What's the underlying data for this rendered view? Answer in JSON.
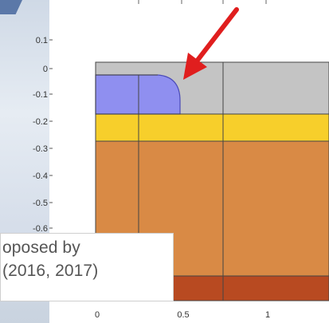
{
  "figure": {
    "y_ticks": [
      "0.1",
      "0",
      "-0.1",
      "-0.2",
      "-0.3",
      "-0.4",
      "-0.5",
      "-0.6"
    ],
    "x_ticks": [
      "0",
      "0.5",
      "1"
    ],
    "layers": [
      {
        "name": "top-gray-layer",
        "color": "#c4c4c4"
      },
      {
        "name": "yellow-layer",
        "color": "#f7cf2b"
      },
      {
        "name": "orange-layer",
        "color": "#d98a45"
      },
      {
        "name": "bottom-rust-layer",
        "color": "#b84a21"
      }
    ],
    "inclusion_color": "#8f8ff0",
    "arrow_color": "#e01e1e"
  },
  "callout": {
    "line1": "oposed by",
    "line2": "(2016, 2017)"
  }
}
